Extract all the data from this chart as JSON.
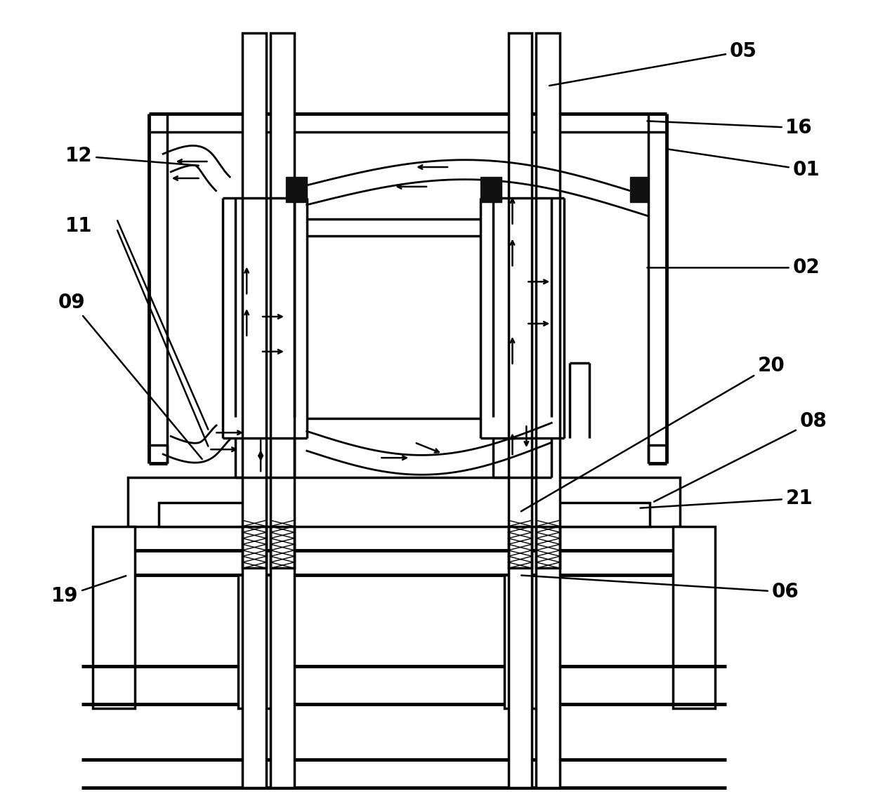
{
  "bg_color": "#ffffff",
  "lc": "#000000",
  "lw": 2.5,
  "tlw": 3.5,
  "fs": 20
}
